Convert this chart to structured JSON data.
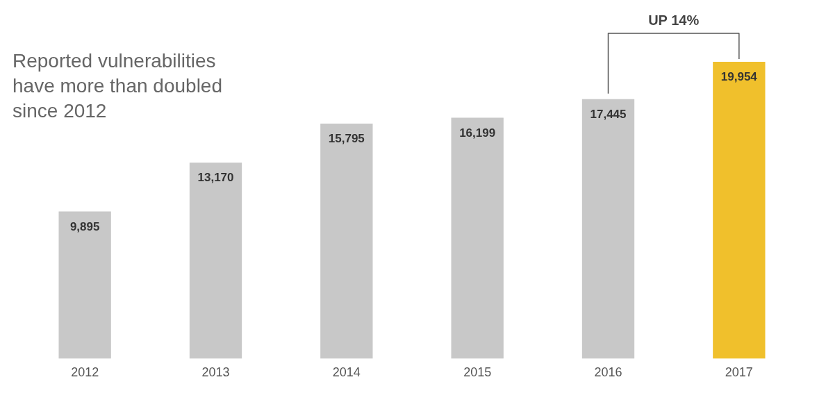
{
  "chart_data": {
    "type": "bar",
    "title": "Reported vulnerabilities have more than doubled since 2012",
    "categories": [
      "2012",
      "2013",
      "2014",
      "2015",
      "2016",
      "2017"
    ],
    "values": [
      9895,
      13170,
      15795,
      16199,
      17445,
      19954
    ],
    "value_labels": [
      "9,895",
      "13,170",
      "15,795",
      "16,199",
      "17,445",
      "19,954"
    ],
    "colors": [
      "#c8c8c8",
      "#c8c8c8",
      "#c8c8c8",
      "#c8c8c8",
      "#c8c8c8",
      "#f0c02c"
    ],
    "annotations": [
      "UP 14%"
    ],
    "grid": false,
    "legend": false
  }
}
